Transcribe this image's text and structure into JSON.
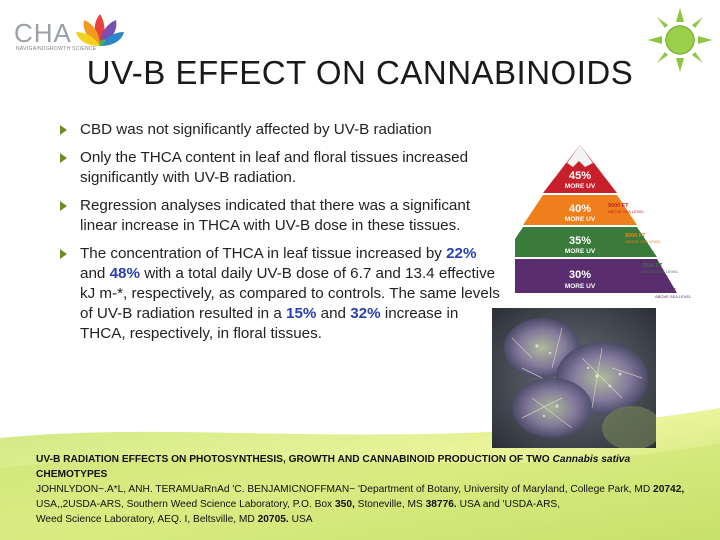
{
  "logo": {
    "text": "CHA",
    "subtitle": "NAVIGAINDGROWTH SCIENCE"
  },
  "title": "UV-B EFFECT ON CANNABINOIDS",
  "bullets": [
    {
      "text": "CBD was not significantly affected by UV-B radiation"
    },
    {
      "text": "Only the THCA content in leaf and floral tissues increased significantly with UV-B radiation."
    },
    {
      "text": "Regression analyses indicated that there was a significant linear increase in THCA with UV-B dose in these tissues."
    },
    {
      "p1": "The concentration of THCA in leaf tissue increased by ",
      "h1": "22%",
      "p2": " and ",
      "h2": "48%",
      "p3": " with a total daily UV-B dose of 6.7 and 13.4 effective kJ m-*, respectively, as compared to controls. The same levels of UV-B radiation resulted in a ",
      "h3": "15%",
      "p4": " and ",
      "h4": "32%",
      "p5": " increase in THCA, respectively, in floral tissues."
    }
  ],
  "pyramid": {
    "levels": [
      {
        "pct": "45%",
        "label": "MORE UV",
        "ft": "9000 FT",
        "sea": "ABOVE SEA LEVEL",
        "color": "#c8202a"
      },
      {
        "pct": "40%",
        "label": "MORE UV",
        "ft": "8000 FT",
        "sea": "ABOVE SEA LEVEL",
        "color": "#ee7f1a"
      },
      {
        "pct": "35%",
        "label": "MORE UV",
        "ft": "7000 FT",
        "sea": "ABOVE SEA LEVEL",
        "color": "#3a7a3a"
      },
      {
        "pct": "30%",
        "label": "MORE UV",
        "ft": "6000 FT",
        "sea": "ABOVE SEA LEVEL",
        "color": "#5a2d6e"
      }
    ]
  },
  "reference": {
    "t1": "UV-B RADIATION EFFECTS ON PHOTOSYNTHESIS, GROWTH AND CANNABINOID PRODUCTION OF TWO ",
    "t2": "Cannabis sativa",
    "t3": " CHEMOTYPES",
    "a1": "JOHNLYDON~.A*L, ANH. TERAMUaRnAd 'C. BENJAMICNOFFMAN~ 'Department of Botany, University of Maryland, College Park, MD ",
    "n1": "20742,",
    "a2": " USA,,2USDA-ARS, Southern Weed Science Laboratory, P.O. Box ",
    "n2": "350,",
    "a3": " Stoneville, MS ",
    "n3": "38776.",
    "a4": " USA and 'USDA-ARS,",
    "a5": "Weed Science Laboratory, AEQ. I, Beltsville, MD ",
    "n4": "20705.",
    "a6": " USA"
  },
  "colors": {
    "accent_green": "#8cc63f",
    "highlight_blue": "#2a3fb0",
    "bullet_arrow": "#6a8f2a"
  }
}
